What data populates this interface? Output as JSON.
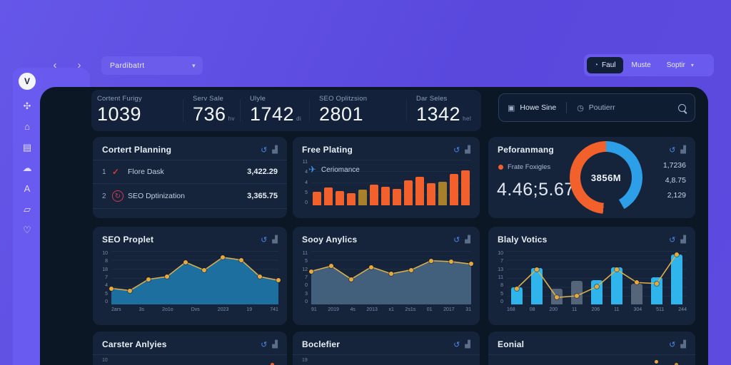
{
  "toolbar": {
    "back": "‹",
    "forward": "›",
    "dropdown": {
      "label": "Pardibatrt",
      "caret": "▾"
    },
    "buttons": {
      "primary": {
        "icon": "◔",
        "label": "Faul"
      },
      "secondary": {
        "label": "Muste"
      },
      "tertiary": {
        "label": "Soptir",
        "caret": "▾"
      }
    }
  },
  "sidebar": {
    "logo": "V",
    "icons": [
      {
        "glyph": "✣"
      },
      {
        "glyph": "⌂"
      },
      {
        "glyph": "▤"
      },
      {
        "glyph": "☁"
      },
      {
        "glyph": "A"
      },
      {
        "glyph": "▱"
      },
      {
        "glyph": "♡"
      }
    ]
  },
  "stats": [
    {
      "label": "Cortent Furigy",
      "value": "1039",
      "suffix": ""
    },
    {
      "label": "Serv Sale",
      "value": "736",
      "suffix": "hv"
    },
    {
      "label": "Ulyle",
      "value": "1742",
      "suffix": "di"
    },
    {
      "label": "SEO Oplitzsion",
      "value": "2801",
      "suffix": ""
    },
    {
      "label": "Dar Seles",
      "value": "1342",
      "suffix": "hel"
    }
  ],
  "search": {
    "scope_icon": "▣",
    "scope": "Howe Sine",
    "time_icon": "◷",
    "query": "Poutierr"
  },
  "card_icons": {
    "refresh": "↺",
    "stats": "▟"
  },
  "cards": {
    "planning": {
      "title": "Cortert Planning",
      "rows": [
        {
          "num": "1",
          "icon": "✓",
          "label": "Flore Dask",
          "value": "3,422.29"
        },
        {
          "num": "2",
          "icon": "↻",
          "label": "SEO Dptinization",
          "value": "3,365.75"
        }
      ]
    },
    "free_plating": {
      "title": "Free Plating",
      "legend_icon": "✈",
      "legend": "Ceriomance",
      "chart": {
        "type": "bar",
        "ymax": 11,
        "y_ticks": [
          "11",
          "4",
          "4",
          "5",
          "0"
        ],
        "values": [
          3.2,
          4.3,
          3.5,
          2.9,
          3.8,
          5.0,
          4.5,
          4.0,
          6.0,
          6.8,
          5.4,
          5.7,
          7.6,
          8.4
        ],
        "colors": [
          "#F2602B",
          "#F2602B",
          "#F2602B",
          "#F2602B",
          "#A8802C",
          "#F2602B",
          "#F2602B",
          "#F2602B",
          "#F2602B",
          "#F2602B",
          "#F2602B",
          "#A8802C",
          "#F2602B",
          "#F2602B"
        ]
      }
    },
    "performance": {
      "title": "Peforanmang",
      "legend": "Frate Foxigles",
      "big_value": "4.46;5.674",
      "donut_center": "3856M",
      "side_values": [
        "1,7236",
        "4,8.75",
        "2,129"
      ],
      "donut": {
        "blue": "#2D9FE8",
        "orange": "#F2602B"
      }
    },
    "seo_proplet": {
      "title": "SEO Proplet",
      "chart": {
        "type": "line",
        "ymax": 10,
        "y_ticks": [
          "10",
          "8",
          "18",
          "7",
          "4",
          "5",
          "0"
        ],
        "x_ticks": [
          "2ars",
          "3s",
          "2o1o",
          "Dvs",
          "2023",
          "19",
          "741"
        ],
        "values": [
          3.0,
          2.6,
          4.7,
          5.2,
          7.9,
          6.4,
          8.8,
          8.3,
          5.2,
          4.5
        ],
        "fill": "#1D6FA0",
        "stroke": "#D9AE4B",
        "dot": "#E8A93C"
      }
    },
    "sooy_anylics": {
      "title": "Sooy Anylics",
      "chart": {
        "type": "line",
        "ymax": 11,
        "y_ticks": [
          "11",
          "5",
          "12",
          "7",
          "0",
          "3",
          "0"
        ],
        "x_ticks": [
          "91",
          "2019",
          "4s",
          "2013",
          "x1",
          "2s1s",
          "01",
          "2017",
          "31"
        ],
        "values": [
          6.8,
          7.9,
          5.2,
          7.7,
          6.3,
          7.1,
          9.0,
          8.8,
          8.3
        ],
        "fill": "#42607B",
        "stroke": "#D9AE4B",
        "dot": "#E8A93C"
      }
    },
    "blaly_votics": {
      "title": "Blaly Votics",
      "chart": {
        "type": "combo",
        "ymax": 10,
        "y_ticks": [
          "10",
          "7",
          "13",
          "11",
          "8",
          "5",
          "0"
        ],
        "x_ticks": [
          "168",
          "08",
          "200",
          "11",
          "206",
          "11",
          "304",
          "511",
          "244"
        ],
        "bars": [
          3.2,
          6.8,
          2.9,
          4.4,
          4.6,
          6.9,
          3.9,
          5.1,
          9.3
        ],
        "bar_colors": [
          "#2FB4EC",
          "#2FB4EC",
          "#55667A",
          "#55667A",
          "#2FB4EC",
          "#2FB4EC",
          "#55667A",
          "#2FB4EC",
          "#2FB4EC"
        ],
        "line": [
          3.0,
          6.6,
          1.3,
          1.6,
          3.3,
          6.5,
          4.1,
          3.9,
          9.4
        ],
        "stroke": "#D9AE4B",
        "dot": "#E8A93C"
      }
    },
    "bottom": [
      {
        "title": "Carster Anlyies",
        "sub": "10"
      },
      {
        "title": "Boclefier",
        "sub": "19"
      },
      {
        "title": "Eonial",
        "sub": ""
      }
    ]
  },
  "colors": {
    "accent_orange": "#F2602B",
    "accent_gold": "#E8A93C",
    "accent_cyan": "#2FB4EC",
    "accent_blue": "#2D9FE8"
  }
}
